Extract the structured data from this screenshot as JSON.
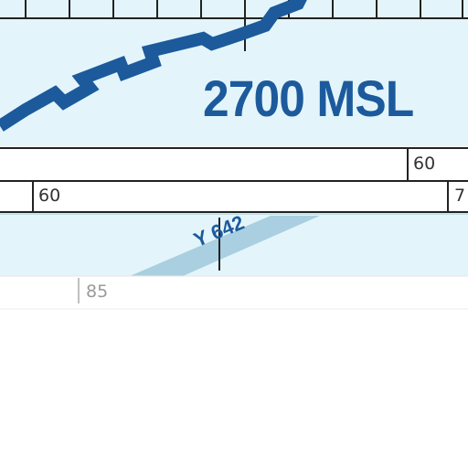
{
  "chart": {
    "altitude_label": "2700 MSL",
    "airway_label": "Y 642",
    "grid_labels": {
      "row1_right": "60",
      "row2_left": "60",
      "row2_right_partial": "7",
      "row3_left": "85"
    }
  },
  "colors": {
    "water_fill": "#e3f5fb",
    "airway_blue": "#1c5a9c",
    "route_band": "#a9cfe0",
    "grid_line": "#222222"
  }
}
